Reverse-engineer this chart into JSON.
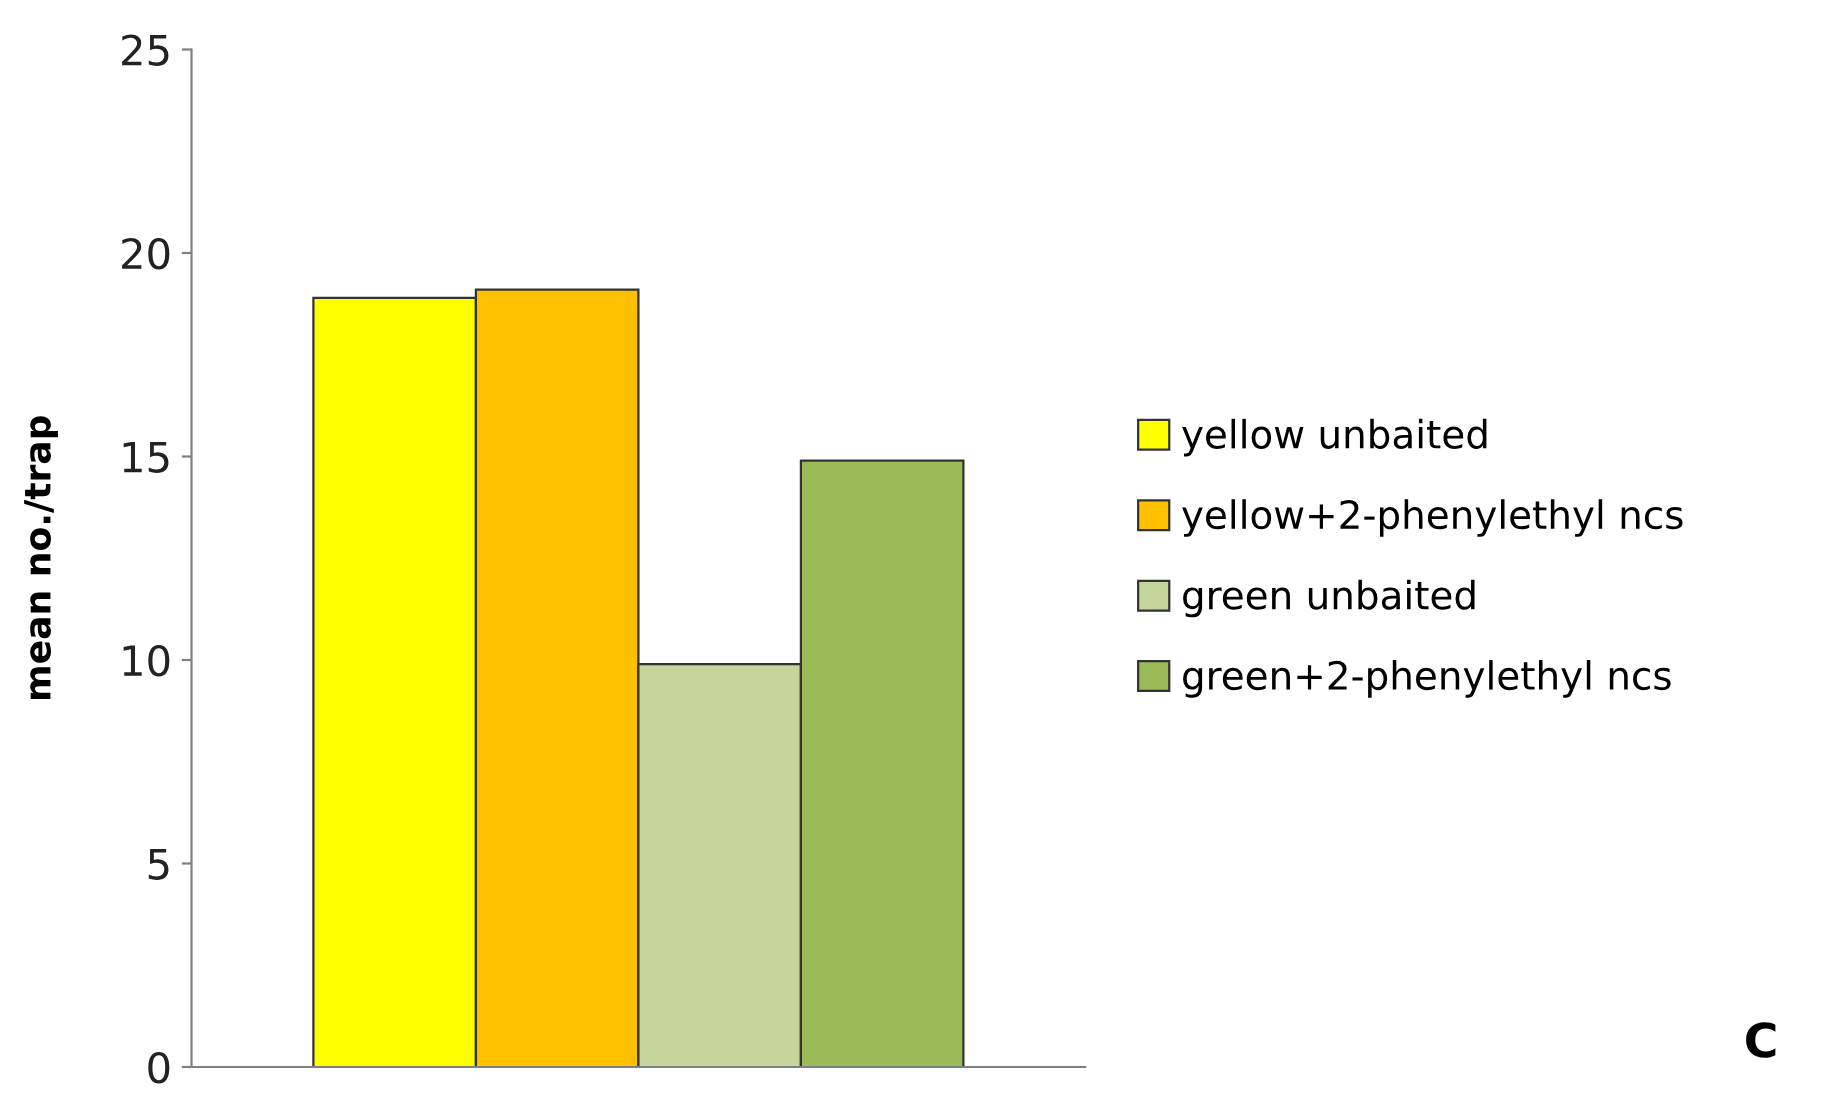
{
  "chart_data": {
    "type": "bar",
    "ylabel": "mean no./trap",
    "categories": [
      null
    ],
    "series": [
      {
        "name": "yellow unbaited",
        "color": "#ffff00",
        "values": [
          18.9
        ]
      },
      {
        "name": "yellow+2-phenylethyl ncs",
        "color": "#ffc000",
        "values": [
          19.1
        ]
      },
      {
        "name": "green unbaited",
        "color": "#c4d69b",
        "values": [
          9.9
        ]
      },
      {
        "name": "green+2-phenylethyl ncs",
        "color": "#9bbb59",
        "values": [
          14.9
        ]
      }
    ],
    "ylim": [
      0,
      25
    ],
    "yticks": [
      0,
      5,
      10,
      15,
      20,
      25
    ],
    "grid": false,
    "legend": "right",
    "annotations": [
      "C"
    ]
  }
}
